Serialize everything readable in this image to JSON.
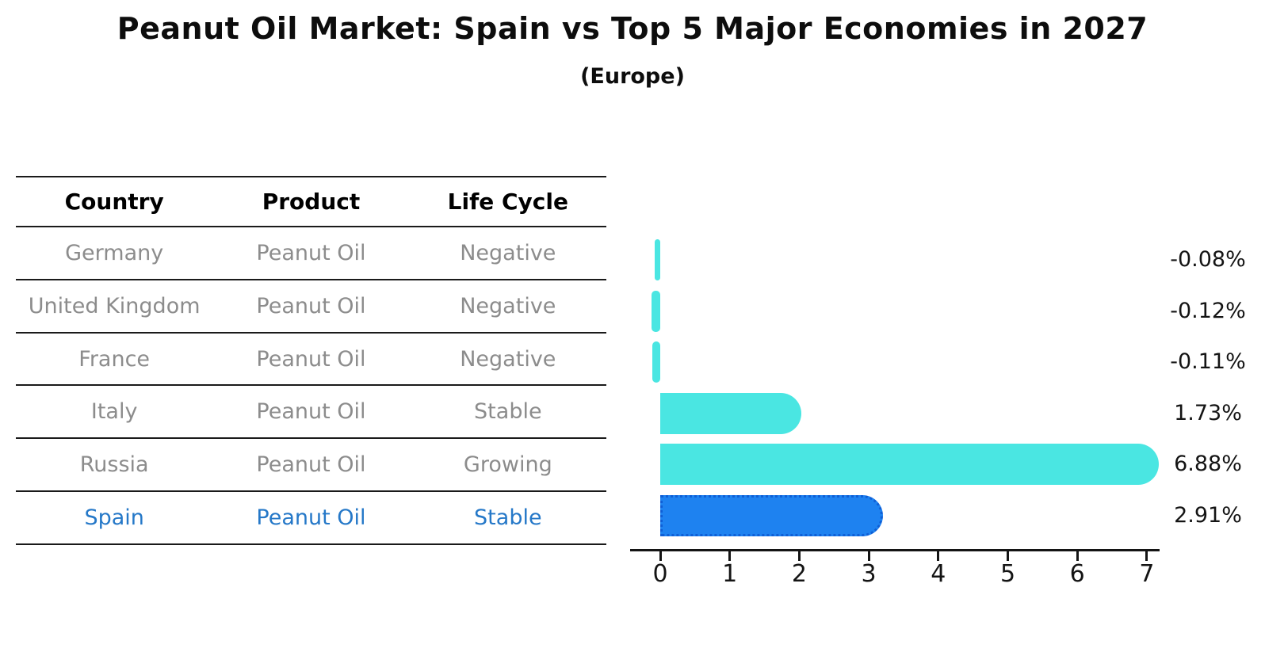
{
  "title": "Peanut Oil Market: Spain vs Top 5 Major Economies in 2027",
  "subtitle": "(Europe)",
  "table": {
    "headers": [
      "Country",
      "Product",
      "Life Cycle"
    ],
    "rows": [
      {
        "country": "Germany",
        "product": "Peanut Oil",
        "life_cycle": "Negative"
      },
      {
        "country": "United Kingdom",
        "product": "Peanut Oil",
        "life_cycle": "Negative"
      },
      {
        "country": "France",
        "product": "Peanut Oil",
        "life_cycle": "Negative"
      },
      {
        "country": "Italy",
        "product": "Peanut Oil",
        "life_cycle": "Stable"
      },
      {
        "country": "Russia",
        "product": "Peanut Oil",
        "life_cycle": "Growing"
      },
      {
        "country": "Spain",
        "product": "Peanut Oil",
        "life_cycle": "Stable"
      }
    ],
    "highlight_row": "Spain"
  },
  "chart_data": {
    "type": "bar",
    "orientation": "horizontal",
    "title": "Peanut Oil Market: Spain vs Top 5 Major Economies in 2027",
    "subtitle": "(Europe)",
    "categories": [
      "Germany",
      "United Kingdom",
      "France",
      "Italy",
      "Russia",
      "Spain"
    ],
    "values": [
      -0.08,
      -0.12,
      -0.11,
      1.73,
      6.88,
      2.91
    ],
    "value_labels": [
      "-0.08%",
      "-0.12%",
      "-0.11%",
      "1.73%",
      "6.88%",
      "2.91%"
    ],
    "unit": "%",
    "xticks": [
      0,
      1,
      2,
      3,
      4,
      5,
      6,
      7
    ],
    "xlim": [
      -0.45,
      7.2
    ],
    "grid": false,
    "legend": false,
    "highlight_index": 5,
    "bar_color": "#4AE6E2",
    "highlight_color": "#1E82F0",
    "highlight_border_color": "#0F5FD6"
  },
  "colors": {
    "background": "#FFFFFF",
    "table_text": "#8C8C8C",
    "table_header_text": "#000000",
    "highlight_text": "#2578C8",
    "axis_text": "#141414",
    "line": "#1A1A1A"
  }
}
